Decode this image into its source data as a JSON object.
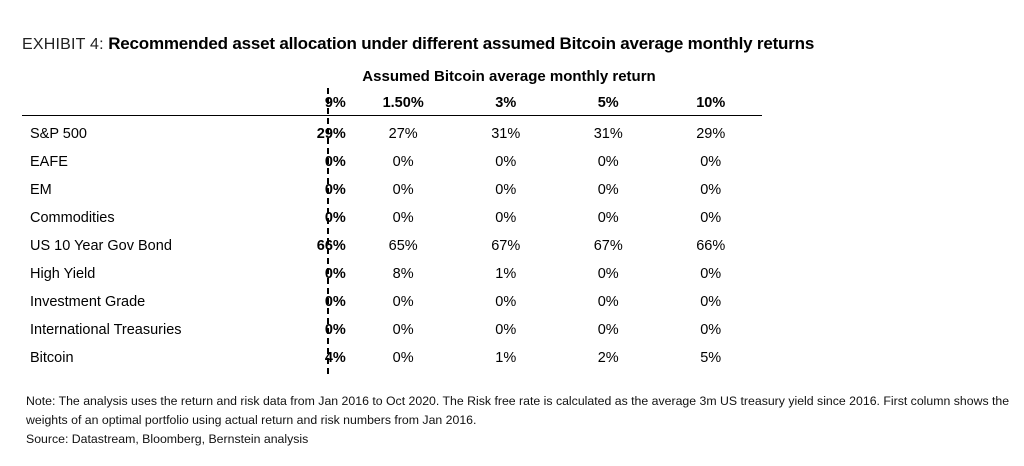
{
  "exhibit": {
    "tag": "EXHIBIT 4:",
    "title": "Recommended asset allocation under different assumed Bitcoin average monthly returns"
  },
  "table": {
    "group_header": "Assumed Bitcoin average monthly return",
    "columns": [
      "9%",
      "1.50%",
      "3%",
      "5%",
      "10%"
    ],
    "rows": [
      {
        "label": "S&P 500",
        "values": [
          "29%",
          "27%",
          "31%",
          "31%",
          "29%"
        ]
      },
      {
        "label": "EAFE",
        "values": [
          "0%",
          "0%",
          "0%",
          "0%",
          "0%"
        ]
      },
      {
        "label": "EM",
        "values": [
          "0%",
          "0%",
          "0%",
          "0%",
          "0%"
        ]
      },
      {
        "label": "Commodities",
        "values": [
          "0%",
          "0%",
          "0%",
          "0%",
          "0%"
        ]
      },
      {
        "label": "US 10 Year Gov Bond",
        "values": [
          "66%",
          "65%",
          "67%",
          "67%",
          "66%"
        ]
      },
      {
        "label": "High Yield",
        "values": [
          "0%",
          "8%",
          "1%",
          "0%",
          "0%"
        ]
      },
      {
        "label": "Investment Grade",
        "values": [
          "0%",
          "0%",
          "0%",
          "0%",
          "0%"
        ]
      },
      {
        "label": "International Treasuries",
        "values": [
          "0%",
          "0%",
          "0%",
          "0%",
          "0%"
        ]
      },
      {
        "label": "Bitcoin",
        "values": [
          "4%",
          "0%",
          "1%",
          "2%",
          "5%"
        ]
      }
    ]
  },
  "notes": {
    "note": "Note: The analysis uses the return and risk data from Jan 2016 to Oct 2020. The Risk free rate is calculated as the average 3m US treasury yield since 2016. First column shows the weights of an optimal portfolio using actual return and risk numbers from Jan 2016.",
    "source": "Source: Datastream, Bloomberg, Bernstein analysis"
  }
}
